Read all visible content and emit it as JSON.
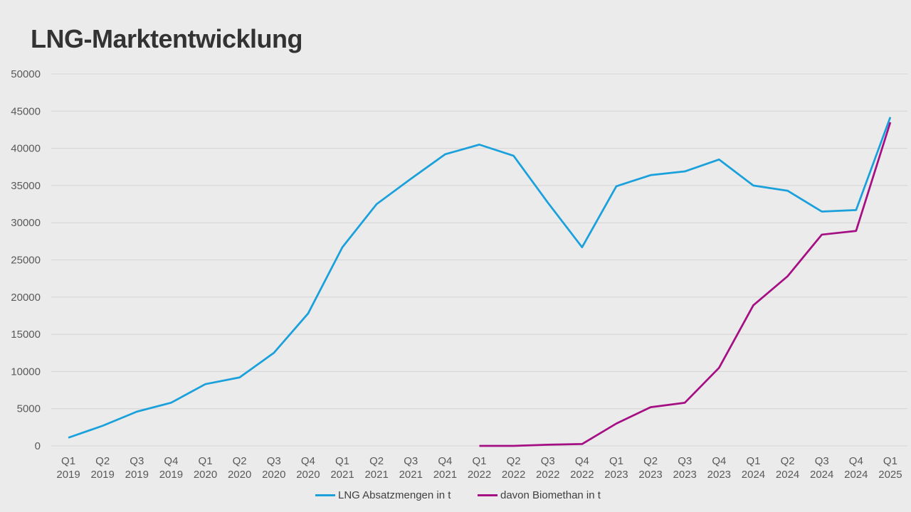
{
  "chart_data": {
    "type": "line",
    "title": "LNG-Marktentwicklung",
    "xlabel": "",
    "ylabel": "",
    "ylim": [
      0,
      50000
    ],
    "yticks": [
      0,
      5000,
      10000,
      15000,
      20000,
      25000,
      30000,
      35000,
      40000,
      45000,
      50000
    ],
    "grid": true,
    "legend_position": "bottom-center",
    "categories": [
      [
        "Q1",
        "2019"
      ],
      [
        "Q2",
        "2019"
      ],
      [
        "Q3",
        "2019"
      ],
      [
        "Q4",
        "2019"
      ],
      [
        "Q1",
        "2020"
      ],
      [
        "Q2",
        "2020"
      ],
      [
        "Q3",
        "2020"
      ],
      [
        "Q4",
        "2020"
      ],
      [
        "Q1",
        "2021"
      ],
      [
        "Q2",
        "2021"
      ],
      [
        "Q3",
        "2021"
      ],
      [
        "Q4",
        "2021"
      ],
      [
        "Q1",
        "2022"
      ],
      [
        "Q2",
        "2022"
      ],
      [
        "Q3",
        "2022"
      ],
      [
        "Q4",
        "2022"
      ],
      [
        "Q1",
        "2023"
      ],
      [
        "Q2",
        "2023"
      ],
      [
        "Q3",
        "2023"
      ],
      [
        "Q4",
        "2023"
      ],
      [
        "Q1",
        "2024"
      ],
      [
        "Q2",
        "2024"
      ],
      [
        "Q3",
        "2024"
      ],
      [
        "Q4",
        "2024"
      ],
      [
        "Q1",
        "2025"
      ]
    ],
    "series": [
      {
        "name": "LNG Absatzmengen in t",
        "color": "#1aa0db",
        "values": [
          1100,
          2700,
          4600,
          5800,
          8300,
          9200,
          12500,
          17800,
          26700,
          32500,
          35900,
          39200,
          40500,
          39000,
          32700,
          26700,
          34900,
          36400,
          36900,
          38500,
          35000,
          34300,
          31500,
          31700,
          44200
        ]
      },
      {
        "name": "davon Biomethan in t",
        "color": "#a50f84",
        "values": [
          null,
          null,
          null,
          null,
          null,
          null,
          null,
          null,
          null,
          null,
          null,
          null,
          0,
          0,
          150,
          250,
          3000,
          5200,
          5800,
          10500,
          18900,
          22800,
          28400,
          28900,
          43500
        ]
      }
    ]
  }
}
